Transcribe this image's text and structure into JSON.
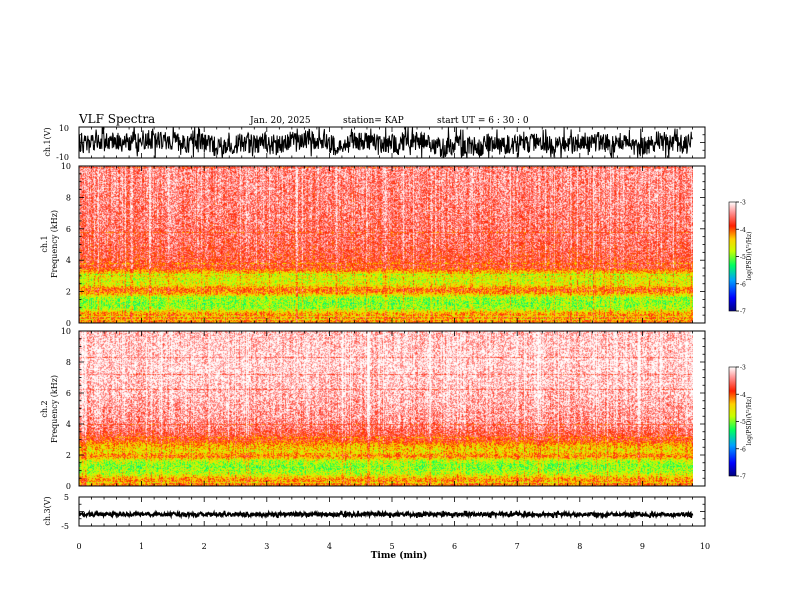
{
  "header": {
    "title": "VLF Spectra",
    "date": "Jan. 20, 2025",
    "station": "station= KAP",
    "start": "start UT =  6 : 30 : 0"
  },
  "chart_data": [
    {
      "type": "line",
      "panel": "ch1-waveform",
      "ylabel": "ch.1(V)",
      "ylim": [
        -10,
        10
      ],
      "yticks": [
        "10",
        "-10"
      ],
      "xlim": [
        0,
        10
      ],
      "x_end": 9.8,
      "description_of_signal": "noisy",
      "series": [
        {
          "color": "#000000"
        }
      ]
    },
    {
      "type": "heatmap",
      "panel": "ch1-spectrogram",
      "ylabel": [
        "ch.1",
        "Frequency (kHz)"
      ],
      "ylim": [
        0,
        10
      ],
      "yticks": [
        "10",
        "8",
        "6",
        "4",
        "2",
        "0"
      ],
      "xlim": [
        0,
        10
      ],
      "x_end": 9.8,
      "colorbar": {
        "label": "log(PSD)(V²/Hz)",
        "range": [
          -7,
          -3
        ],
        "ticks": [
          "-3",
          "-4",
          "-5",
          "-6",
          "-7"
        ]
      },
      "freq_profile_khz_vs_log_psd": [
        [
          0,
          -4.2
        ],
        [
          0.3,
          -4.1
        ],
        [
          0.6,
          -4.3
        ],
        [
          0.9,
          -4.9
        ],
        [
          1.2,
          -5.0
        ],
        [
          1.6,
          -4.9
        ],
        [
          1.9,
          -4.2
        ],
        [
          2.1,
          -4.0
        ],
        [
          2.4,
          -4.6
        ],
        [
          2.8,
          -4.7
        ],
        [
          3.2,
          -4.4
        ],
        [
          3.5,
          -3.8
        ],
        [
          5,
          -3.6
        ],
        [
          7,
          -3.5
        ],
        [
          10,
          -3.4
        ]
      ]
    },
    {
      "type": "heatmap",
      "panel": "ch2-spectrogram",
      "ylabel": [
        "ch.2",
        "Frequency (kHz)"
      ],
      "ylim": [
        0,
        10
      ],
      "yticks": [
        "10",
        "8",
        "6",
        "4",
        "2",
        "0"
      ],
      "xlim": [
        0,
        10
      ],
      "x_end": 9.8,
      "colorbar": {
        "label": "log(PSD)(V²/Hz)",
        "range": [
          -7,
          -3
        ],
        "ticks": [
          "-3",
          "-4",
          "-5",
          "-6",
          "-7"
        ]
      },
      "freq_profile_khz_vs_log_psd": [
        [
          0,
          -4.1
        ],
        [
          0.4,
          -4.2
        ],
        [
          0.8,
          -4.8
        ],
        [
          1.2,
          -5.0
        ],
        [
          1.6,
          -4.8
        ],
        [
          1.9,
          -4.1
        ],
        [
          2.2,
          -4.5
        ],
        [
          2.6,
          -4.3
        ],
        [
          3.0,
          -3.8
        ],
        [
          4,
          -3.4
        ],
        [
          6,
          -3.2
        ],
        [
          8,
          -3.1
        ],
        [
          10,
          -3.2
        ]
      ]
    },
    {
      "type": "line",
      "panel": "ch3-waveform",
      "ylabel": "ch.3(V)",
      "ylim": [
        -5,
        5
      ],
      "yticks": [
        "5",
        "-5"
      ],
      "xlim": [
        0,
        10
      ],
      "x_end": 9.8,
      "baseline_value": -1,
      "series": [
        {
          "color": "#000000"
        }
      ]
    }
  ],
  "xaxis": {
    "label": "Time (min)",
    "ticks": [
      "0",
      "1",
      "2",
      "3",
      "4",
      "5",
      "6",
      "7",
      "8",
      "9",
      "10"
    ]
  }
}
